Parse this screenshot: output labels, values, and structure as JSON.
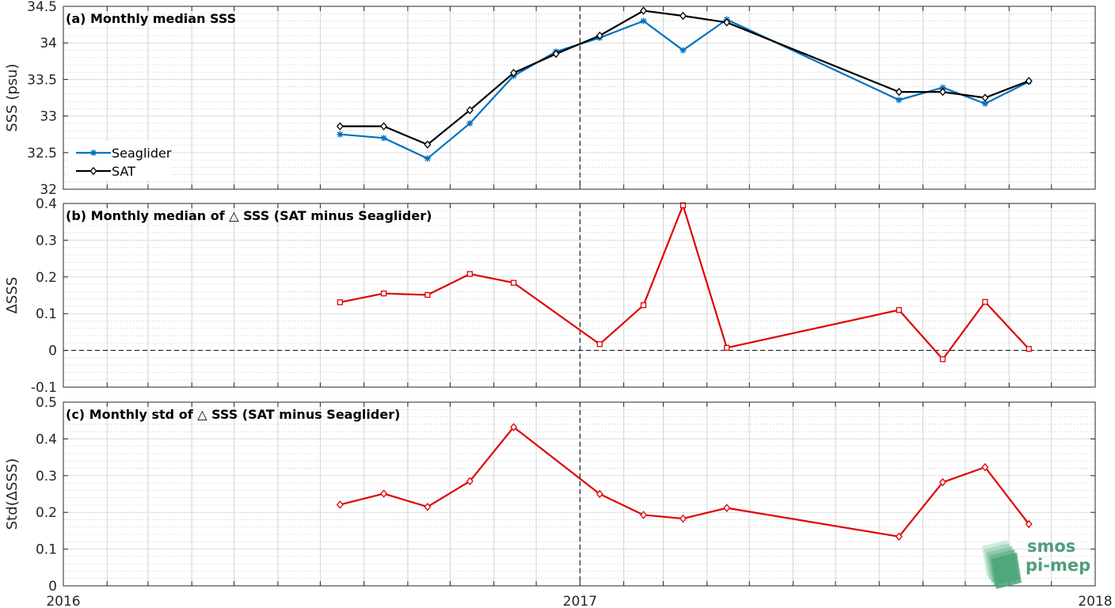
{
  "x_axis": {
    "ticks": [
      "2016",
      "2017",
      "2018"
    ],
    "range": [
      "2016-01-01",
      "2018-01-01"
    ],
    "month_grid": true,
    "marker_line": "2017-01-01"
  },
  "colors": {
    "seaglider": "#0072bd",
    "sat": "#000000",
    "delta": "#e00000",
    "zero_line": "#000000"
  },
  "logo": {
    "line1": "smos",
    "line2": "pi-mep"
  },
  "chart_data": [
    {
      "type": "line",
      "title": "(a) Monthly median SSS",
      "ylabel": "SSS (psu)",
      "ylim": [
        32,
        34.5
      ],
      "yticks": [
        32,
        32.5,
        33,
        33.5,
        34,
        34.5
      ],
      "ytick_labels": [
        "32",
        "32.5",
        "33",
        "33.5",
        "34",
        "34.5"
      ],
      "legend": {
        "placement": "lower-left"
      },
      "x": [
        "2016-07-15",
        "2016-08-15",
        "2016-09-15",
        "2016-10-15",
        "2016-11-15",
        "2016-12-15",
        "2017-01-15",
        "2017-02-15",
        "2017-03-15",
        "2017-04-15",
        "2017-08-15",
        "2017-09-15",
        "2017-10-15",
        "2017-11-15"
      ],
      "series": [
        {
          "name": "Seaglider",
          "marker": "asterisk",
          "values": [
            32.75,
            32.7,
            32.42,
            32.9,
            33.55,
            33.88,
            34.07,
            34.3,
            33.9,
            34.32,
            33.22,
            33.39,
            33.17,
            33.47
          ]
        },
        {
          "name": "SAT",
          "marker": "diamond",
          "values": [
            32.86,
            32.86,
            32.61,
            33.08,
            33.59,
            33.85,
            34.1,
            34.44,
            34.37,
            34.28,
            33.33,
            33.33,
            33.25,
            33.48
          ]
        }
      ]
    },
    {
      "type": "line",
      "title": "(b) Monthly median of △ SSS (SAT minus Seaglider)",
      "ylabel": "ΔSSS",
      "ylim": [
        -0.1,
        0.4
      ],
      "yticks": [
        -0.1,
        0,
        0.1,
        0.2,
        0.3,
        0.4
      ],
      "ytick_labels": [
        "-0.1",
        "0",
        "0.1",
        "0.2",
        "0.3",
        "0.4"
      ],
      "zero_line": true,
      "x": [
        "2016-07-15",
        "2016-08-15",
        "2016-09-15",
        "2016-10-15",
        "2016-11-15",
        "2017-01-15",
        "2017-02-15",
        "2017-03-15",
        "2017-04-15",
        "2017-08-15",
        "2017-09-15",
        "2017-10-15",
        "2017-11-15"
      ],
      "series": [
        {
          "marker": "square",
          "values": [
            0.131,
            0.155,
            0.151,
            0.208,
            0.184,
            0.017,
            0.123,
            0.395,
            0.007,
            0.11,
            -0.024,
            0.132,
            0.004
          ]
        }
      ]
    },
    {
      "type": "line",
      "title": "(c) Monthly std of △ SSS (SAT minus Seaglider)",
      "ylabel": "Std(ΔSSS)",
      "ylim": [
        0,
        0.5
      ],
      "yticks": [
        0,
        0.1,
        0.2,
        0.3,
        0.4,
        0.5
      ],
      "ytick_labels": [
        "0",
        "0.1",
        "0.2",
        "0.3",
        "0.4",
        "0.5"
      ],
      "x": [
        "2016-07-15",
        "2016-08-15",
        "2016-09-15",
        "2016-10-15",
        "2016-11-15",
        "2017-01-15",
        "2017-02-15",
        "2017-03-15",
        "2017-04-15",
        "2017-08-15",
        "2017-09-15",
        "2017-10-15",
        "2017-11-15"
      ],
      "series": [
        {
          "marker": "diamond",
          "values": [
            0.221,
            0.251,
            0.215,
            0.285,
            0.432,
            0.25,
            0.193,
            0.183,
            0.212,
            0.134,
            0.282,
            0.323,
            0.168
          ]
        }
      ]
    }
  ]
}
